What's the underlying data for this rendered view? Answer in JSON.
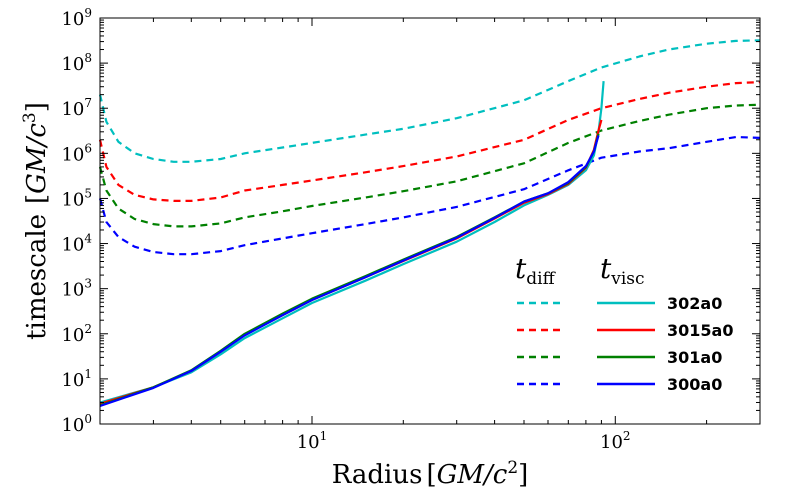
{
  "chart_data": {
    "type": "line",
    "xscale": "log",
    "yscale": "log",
    "xlim": [
      2,
      300
    ],
    "ylim": [
      1,
      1000000000
    ],
    "xlabel": {
      "prefix": "Radius",
      "unit_main": "GM/c",
      "unit_exp": "2"
    },
    "ylabel": {
      "prefix": "timescale",
      "unit_main": "GM/c",
      "unit_exp": "3"
    },
    "x_ticks": [
      {
        "value": 10,
        "base": "10",
        "exp": "1"
      },
      {
        "value": 100,
        "base": "10",
        "exp": "2"
      }
    ],
    "y_ticks": [
      {
        "value": 1,
        "base": "10",
        "exp": "0"
      },
      {
        "value": 10,
        "base": "10",
        "exp": "1"
      },
      {
        "value": 100,
        "base": "10",
        "exp": "2"
      },
      {
        "value": 1000,
        "base": "10",
        "exp": "3"
      },
      {
        "value": 10000,
        "base": "10",
        "exp": "4"
      },
      {
        "value": 100000,
        "base": "10",
        "exp": "5"
      },
      {
        "value": 1000000,
        "base": "10",
        "exp": "6"
      },
      {
        "value": 10000000,
        "base": "10",
        "exp": "7"
      },
      {
        "value": 100000000,
        "base": "10",
        "exp": "8"
      },
      {
        "value": 1000000000,
        "base": "10",
        "exp": "9"
      }
    ],
    "legend": {
      "position": "lower-right",
      "col_headers": [
        {
          "sym": "t",
          "sub": "diff"
        },
        {
          "sym": "t",
          "sub": "visc"
        }
      ]
    },
    "series": [
      {
        "name": "302a0",
        "color": "#00bfbf",
        "kind": "diff",
        "x": [
          2.0,
          2.1,
          2.3,
          2.6,
          3.0,
          3.5,
          4.0,
          5.0,
          6.0,
          8.0,
          10.0,
          15.0,
          20.0,
          30.0,
          50.0,
          70.0,
          90.0,
          120.0,
          150.0,
          200.0,
          250.0,
          300.0
        ],
        "y": [
          20000000,
          5000000,
          1800000,
          1000000,
          750000,
          650000,
          650000,
          750000,
          1000000,
          1350000,
          1700000,
          2600000,
          3500000,
          6000000,
          15000000,
          40000000,
          80000000,
          140000000,
          200000000,
          270000000,
          310000000,
          320000000
        ]
      },
      {
        "name": "3015a0",
        "color": "#ff0000",
        "kind": "diff",
        "x": [
          2.0,
          2.1,
          2.3,
          2.6,
          3.0,
          3.5,
          4.0,
          5.0,
          6.0,
          8.0,
          10.0,
          15.0,
          20.0,
          30.0,
          50.0,
          70.0,
          90.0,
          120.0,
          150.0,
          200.0,
          250.0,
          300.0
        ],
        "y": [
          2000000,
          500000,
          200000,
          120000,
          95000,
          88000,
          88000,
          105000,
          150000,
          200000,
          250000,
          380000,
          520000,
          850000,
          2000000,
          5500000,
          10000000,
          16000000,
          22000000,
          30000000,
          36000000,
          38000000
        ]
      },
      {
        "name": "301a0",
        "color": "#008000",
        "kind": "diff",
        "x": [
          2.0,
          2.1,
          2.3,
          2.6,
          3.0,
          3.5,
          4.0,
          5.0,
          6.0,
          8.0,
          10.0,
          15.0,
          20.0,
          30.0,
          50.0,
          70.0,
          90.0,
          120.0,
          150.0,
          200.0,
          250.0,
          300.0
        ],
        "y": [
          500000,
          150000,
          60000,
          35000,
          27000,
          24000,
          24000,
          28000,
          38000,
          52000,
          68000,
          105000,
          145000,
          240000,
          600000,
          1700000,
          3200000,
          5200000,
          7200000,
          10000000,
          11500000,
          12000000
        ]
      },
      {
        "name": "300a0",
        "color": "#0000ff",
        "kind": "diff",
        "x": [
          2.0,
          2.1,
          2.3,
          2.6,
          3.0,
          3.5,
          4.0,
          5.0,
          6.0,
          8.0,
          10.0,
          15.0,
          20.0,
          30.0,
          50.0,
          70.0,
          90.0,
          120.0,
          150.0,
          200.0,
          250.0,
          300.0
        ],
        "y": [
          100000,
          30000,
          14000,
          8500,
          6500,
          5800,
          5800,
          6800,
          9200,
          13000,
          17000,
          27000,
          38000,
          65000,
          160000,
          420000,
          800000,
          1100000,
          1300000,
          1800000,
          2300000,
          2200000
        ]
      },
      {
        "name": "302a0",
        "color": "#00bfbf",
        "kind": "visc",
        "x": [
          2.0,
          3.0,
          4.0,
          5.0,
          6.0,
          8.0,
          10.0,
          15.0,
          20.0,
          30.0,
          40.0,
          50.0,
          60.0,
          70.0,
          80.0,
          85.0,
          88.0,
          90.0,
          91.5
        ],
        "y": [
          3,
          6.5,
          14,
          35,
          80,
          220,
          480,
          1500,
          3500,
          11000,
          30000,
          70000,
          120000,
          200000,
          420000,
          900000,
          3000000,
          10000000,
          40000000
        ]
      },
      {
        "name": "3015a0",
        "color": "#ff0000",
        "kind": "visc",
        "x": [
          2.0,
          3.0,
          4.0,
          5.0,
          6.0,
          8.0,
          10.0,
          15.0,
          20.0,
          30.0,
          40.0,
          50.0,
          60.0,
          70.0,
          80.0,
          85.0,
          88.0,
          90.0
        ],
        "y": [
          2.8,
          6.5,
          15,
          40,
          95,
          260,
          560,
          1800,
          4100,
          13000,
          36000,
          80000,
          125000,
          210000,
          480000,
          1200000,
          3200000,
          5500000
        ]
      },
      {
        "name": "301a0",
        "color": "#008000",
        "kind": "visc",
        "x": [
          2.0,
          3.0,
          4.0,
          5.0,
          6.0,
          8.0,
          10.0,
          15.0,
          20.0,
          30.0,
          40.0,
          50.0,
          60.0,
          70.0,
          80.0,
          85.0,
          88.0
        ],
        "y": [
          2.6,
          6.5,
          15.5,
          42,
          100,
          280,
          600,
          1900,
          4400,
          14000,
          38000,
          85000,
          130000,
          220000,
          500000,
          1100000,
          2700000
        ]
      },
      {
        "name": "300a0",
        "color": "#0000ff",
        "kind": "visc",
        "x": [
          2.0,
          3.0,
          4.0,
          5.0,
          6.0,
          8.0,
          10.0,
          15.0,
          20.0,
          30.0,
          40.0,
          50.0,
          60.0,
          70.0,
          80.0,
          85.0,
          88.0
        ],
        "y": [
          2.5,
          6.3,
          15,
          40,
          92,
          260,
          560,
          1800,
          4200,
          13500,
          37000,
          85000,
          130000,
          230000,
          520000,
          1100000,
          2500000
        ]
      }
    ]
  }
}
